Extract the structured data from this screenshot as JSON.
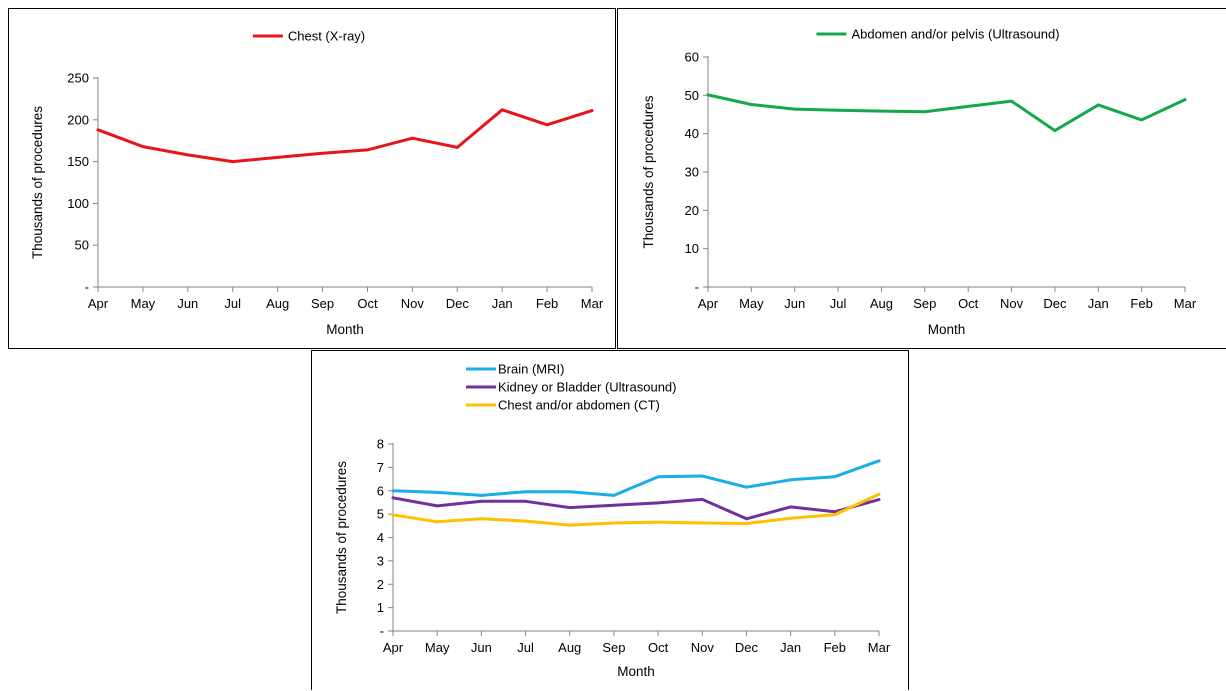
{
  "chart_data": [
    {
      "type": "line",
      "categories": [
        "Apr",
        "May",
        "Jun",
        "Jul",
        "Aug",
        "Sep",
        "Oct",
        "Nov",
        "Dec",
        "Jan",
        "Feb",
        "Mar"
      ],
      "series": [
        {
          "name": "Chest (X-ray)",
          "color": "#e8141b",
          "values": [
            188,
            168,
            158,
            150,
            155,
            160,
            164,
            178,
            167,
            212,
            194,
            211
          ]
        }
      ],
      "yticks": [
        "-",
        "50",
        "100",
        "150",
        "200",
        "250"
      ],
      "ylim": [
        0,
        250
      ],
      "xlabel": "Month",
      "ylabel": "Thousands of procedures",
      "legend": "top-center",
      "grid": false
    },
    {
      "type": "line",
      "categories": [
        "Apr",
        "May",
        "Jun",
        "Jul",
        "Aug",
        "Sep",
        "Oct",
        "Nov",
        "Dec",
        "Jan",
        "Feb",
        "Mar"
      ],
      "series": [
        {
          "name": "Abdomen and/or pelvis  (Ultrasound)",
          "color": "#14a84b",
          "values": [
            50.1,
            47.6,
            46.4,
            46.1,
            45.9,
            45.7,
            47.1,
            48.5,
            40.8,
            47.5,
            43.6,
            48.9
          ]
        }
      ],
      "yticks": [
        "-",
        "10",
        "20",
        "30",
        "40",
        "50",
        "60"
      ],
      "ylim": [
        0,
        60
      ],
      "xlabel": "Month",
      "ylabel": "Thousands of procedures",
      "legend": "top-center",
      "grid": false
    },
    {
      "type": "line",
      "categories": [
        "Apr",
        "May",
        "Jun",
        "Jul",
        "Aug",
        "Sep",
        "Oct",
        "Nov",
        "Dec",
        "Jan",
        "Feb",
        "Mar"
      ],
      "series": [
        {
          "name": "Brain (MRI)",
          "color": "#1aaee8",
          "values": [
            6.0,
            5.93,
            5.8,
            5.96,
            5.96,
            5.8,
            6.6,
            6.63,
            6.15,
            6.47,
            6.6,
            7.28
          ]
        },
        {
          "name": "Kidney or Bladder (Ultrasound)",
          "color": "#7030a0",
          "values": [
            5.7,
            5.35,
            5.55,
            5.55,
            5.28,
            5.38,
            5.48,
            5.63,
            4.8,
            5.31,
            5.1,
            5.62
          ]
        },
        {
          "name": "Chest and/or abdomen (CT)",
          "color": "#ffc000",
          "values": [
            4.97,
            4.67,
            4.8,
            4.7,
            4.53,
            4.62,
            4.66,
            4.62,
            4.6,
            4.82,
            4.98,
            5.85
          ]
        }
      ],
      "yticks": [
        "-",
        "1",
        "2",
        "3",
        "4",
        "5",
        "6",
        "7",
        "8"
      ],
      "ylim": [
        0,
        8
      ],
      "xlabel": "Month",
      "ylabel": "Thousands of procedures",
      "legend": "top-left",
      "grid": false
    }
  ]
}
